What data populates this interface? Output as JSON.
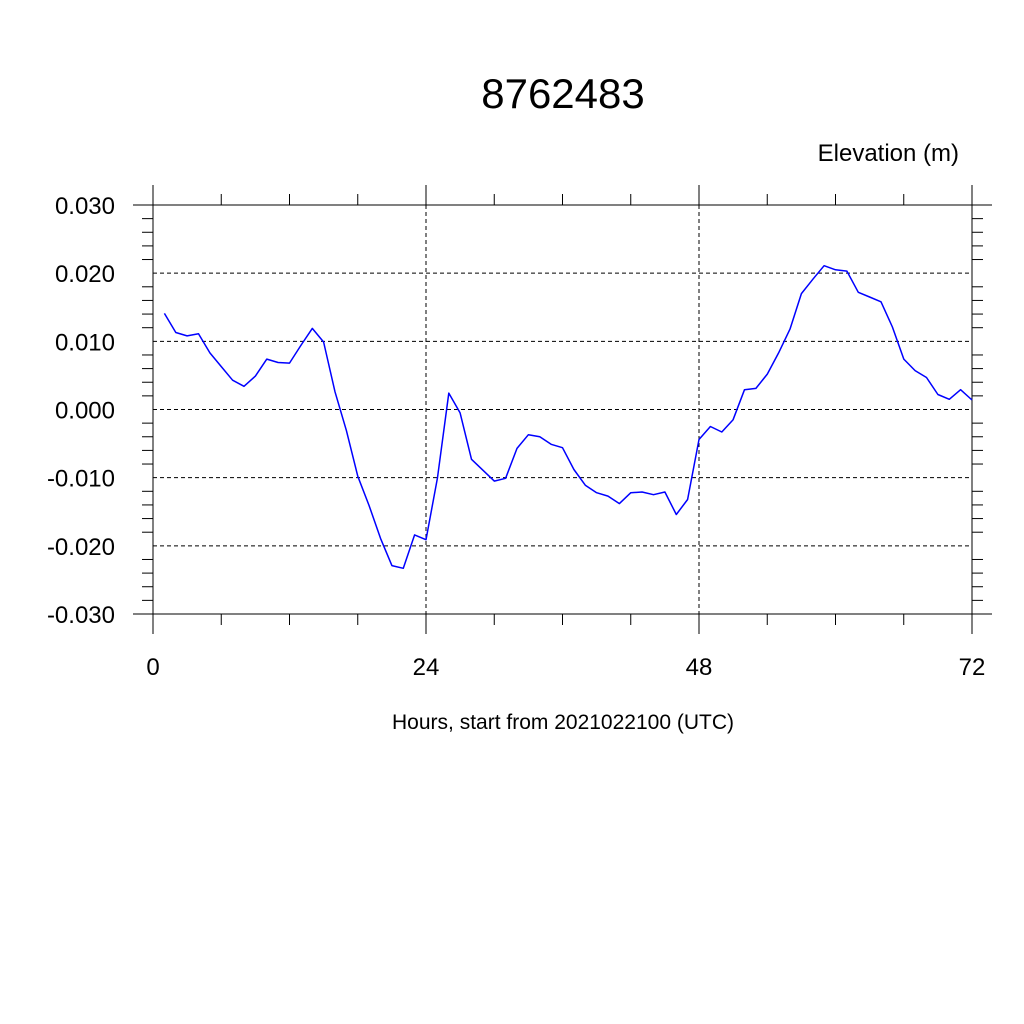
{
  "chart_data": {
    "type": "line",
    "title": "8762483",
    "subtitle": "Elevation (m)",
    "xlabel": "Hours, start from 2021022100 (UTC)",
    "ylabel": "",
    "xlim": [
      0,
      72
    ],
    "ylim": [
      -0.03,
      0.03
    ],
    "x_ticks": [
      0,
      24,
      48,
      72
    ],
    "x_tick_labels": [
      "0",
      "24",
      "48",
      "72"
    ],
    "y_ticks": [
      0.03,
      0.02,
      0.01,
      0.0,
      -0.01,
      -0.02,
      -0.03
    ],
    "y_tick_labels": [
      "0.030",
      "0.020",
      "0.010",
      "0.000",
      "-0.010",
      "-0.020",
      "-0.030"
    ],
    "grid": true,
    "line_color": "#0000ff",
    "series": [
      {
        "x": [
          1,
          2,
          3,
          4,
          5,
          6,
          7,
          8,
          9,
          10,
          11,
          12,
          13,
          14,
          15,
          16,
          17,
          18,
          19,
          20,
          21,
          22,
          23,
          24,
          25,
          26,
          27,
          28,
          29,
          30,
          31,
          32,
          33,
          34,
          35,
          36,
          37,
          38,
          39,
          40,
          41,
          42,
          43,
          44,
          45,
          46,
          47,
          48,
          49,
          50,
          51,
          52,
          53,
          54,
          55,
          56,
          57,
          58,
          59,
          60,
          61,
          62,
          63,
          64,
          65,
          66,
          67,
          68,
          69,
          70,
          71,
          72
        ],
        "values": [
          0.0141,
          0.0113,
          0.0108,
          0.0111,
          0.0083,
          0.0063,
          0.0043,
          0.0034,
          0.0049,
          0.0074,
          0.0069,
          0.0068,
          0.0094,
          0.0119,
          0.0099,
          0.0026,
          -0.0031,
          -0.0098,
          -0.0141,
          -0.0189,
          -0.0229,
          -0.0233,
          -0.0184,
          -0.0191,
          -0.0101,
          0.0024,
          -0.0005,
          -0.0073,
          -0.0089,
          -0.0105,
          -0.0101,
          -0.0057,
          -0.0037,
          -0.004,
          -0.0051,
          -0.0056,
          -0.0088,
          -0.0111,
          -0.0122,
          -0.0127,
          -0.0138,
          -0.0122,
          -0.0121,
          -0.0125,
          -0.0121,
          -0.0154,
          -0.0132,
          -0.0044,
          -0.0025,
          -0.0033,
          -0.0015,
          0.0029,
          0.0031,
          0.0052,
          0.0083,
          0.0118,
          0.017,
          0.0191,
          0.0211,
          0.0205,
          0.0203,
          0.0172,
          0.0165,
          0.0158,
          0.0121,
          0.0074,
          0.0057,
          0.0047,
          0.0022,
          0.0015,
          0.0029,
          0.0014
        ]
      }
    ]
  }
}
